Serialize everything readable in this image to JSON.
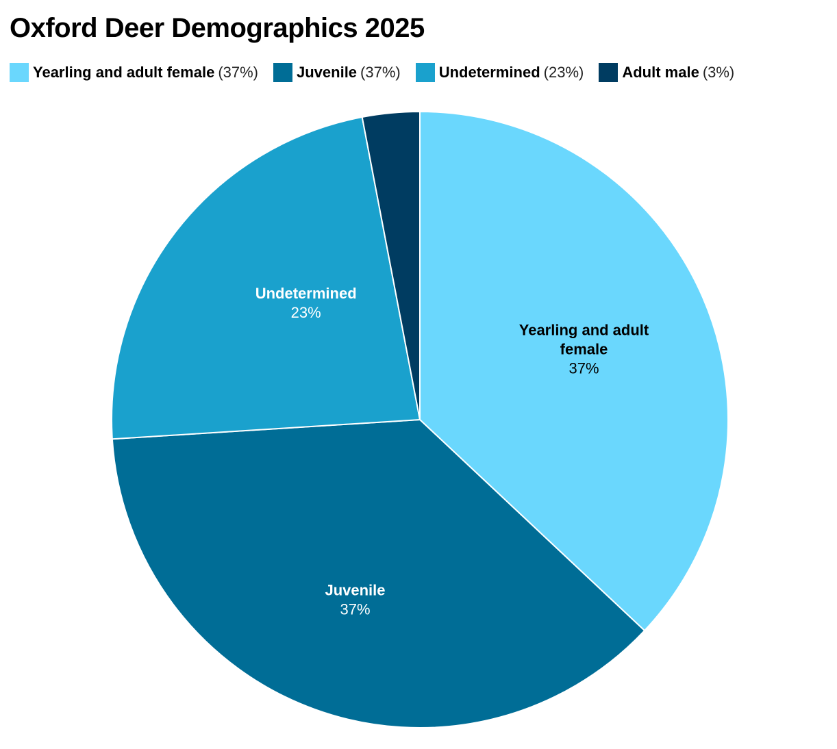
{
  "chart_data": {
    "type": "pie",
    "title": "Oxford Deer Demographics 2025",
    "legend_position": "top",
    "slices": [
      {
        "name": "Yearling and adult female",
        "value": 37,
        "pct_label": "37%",
        "legend_pct": "(37%)",
        "color": "#6AD7FD",
        "label_color": "#000000",
        "label_lines": [
          "Yearling and adult",
          "female"
        ]
      },
      {
        "name": "Juvenile",
        "value": 37,
        "pct_label": "37%",
        "legend_pct": "(37%)",
        "color": "#006D96",
        "label_color": "#ffffff",
        "label_lines": [
          "Juvenile"
        ]
      },
      {
        "name": "Undetermined",
        "value": 23,
        "pct_label": "23%",
        "legend_pct": "(23%)",
        "color": "#1AA1CD",
        "label_color": "#ffffff",
        "label_lines": [
          "Undetermined"
        ]
      },
      {
        "name": "Adult male",
        "value": 3,
        "pct_label": "3%",
        "legend_pct": "(3%)",
        "color": "#003C61",
        "label_color": "#ffffff",
        "label_lines": []
      }
    ]
  }
}
